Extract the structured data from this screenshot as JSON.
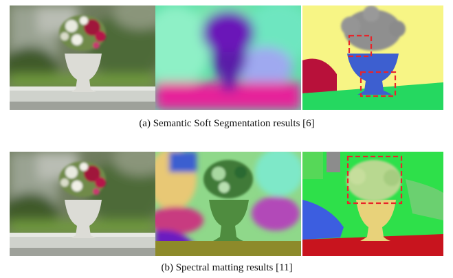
{
  "figure": {
    "rows": [
      {
        "caption": "(a) Semantic Soft Segmentation results [6]"
      },
      {
        "caption": "(b) Spectral matting results [11]"
      }
    ]
  }
}
